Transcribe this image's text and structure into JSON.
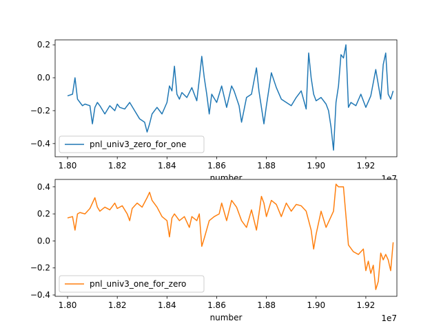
{
  "chart_data": [
    {
      "type": "line",
      "xlabel": "number",
      "ylabel": "",
      "x_offset_text": "1e7",
      "xlim": [
        1.795,
        1.9325
      ],
      "ylim": [
        -0.48,
        0.23
      ],
      "x_ticks": [
        1.8,
        1.82,
        1.84,
        1.86,
        1.88,
        1.9,
        1.92
      ],
      "x_tick_labels": [
        "1.80",
        "1.82",
        "1.84",
        "1.86",
        "1.88",
        "1.90",
        "1.92"
      ],
      "y_ticks": [
        0.2,
        0.0,
        -0.2,
        -0.4
      ],
      "y_tick_labels": [
        "0.2",
        "0.0",
        "−0.2",
        "−0.4"
      ],
      "grid": false,
      "legend_position": "lower-left",
      "series": [
        {
          "name": "pnl_univ3_zero_for_one",
          "color": "#1f77b4",
          "x": [
            1.8,
            1.802,
            1.803,
            1.804,
            1.805,
            1.806,
            1.807,
            1.809,
            1.81,
            1.811,
            1.812,
            1.813,
            1.815,
            1.817,
            1.819,
            1.82,
            1.821,
            1.823,
            1.825,
            1.827,
            1.829,
            1.831,
            1.832,
            1.833,
            1.834,
            1.836,
            1.838,
            1.84,
            1.841,
            1.842,
            1.843,
            1.844,
            1.845,
            1.846,
            1.848,
            1.85,
            1.852,
            1.853,
            1.854,
            1.855,
            1.856,
            1.857,
            1.858,
            1.86,
            1.862,
            1.864,
            1.866,
            1.867,
            1.869,
            1.87,
            1.872,
            1.874,
            1.876,
            1.877,
            1.879,
            1.88,
            1.882,
            1.884,
            1.886,
            1.888,
            1.89,
            1.892,
            1.894,
            1.896,
            1.897,
            1.898,
            1.899,
            1.9,
            1.902,
            1.904,
            1.905,
            1.906,
            1.907,
            1.908,
            1.909,
            1.91,
            1.911,
            1.912,
            1.913,
            1.914,
            1.916,
            1.918,
            1.92,
            1.922,
            1.924,
            1.926,
            1.927,
            1.928,
            1.929,
            1.93,
            1.931
          ],
          "values": [
            -0.11,
            -0.1,
            0.0,
            -0.13,
            -0.15,
            -0.17,
            -0.16,
            -0.17,
            -0.28,
            -0.18,
            -0.15,
            -0.17,
            -0.22,
            -0.17,
            -0.2,
            -0.16,
            -0.18,
            -0.19,
            -0.15,
            -0.2,
            -0.25,
            -0.27,
            -0.33,
            -0.28,
            -0.22,
            -0.18,
            -0.22,
            -0.15,
            -0.05,
            -0.08,
            0.07,
            -0.1,
            -0.13,
            -0.09,
            -0.12,
            -0.06,
            -0.14,
            -0.01,
            0.13,
            0.0,
            -0.1,
            -0.22,
            -0.1,
            -0.15,
            -0.05,
            -0.18,
            -0.05,
            -0.08,
            -0.17,
            -0.27,
            -0.12,
            -0.1,
            0.06,
            -0.08,
            -0.28,
            -0.17,
            0.03,
            -0.06,
            -0.13,
            -0.15,
            -0.17,
            -0.12,
            -0.08,
            -0.19,
            0.15,
            0.0,
            -0.1,
            -0.14,
            -0.12,
            -0.16,
            -0.2,
            -0.3,
            -0.44,
            -0.15,
            -0.05,
            0.14,
            0.12,
            0.2,
            -0.18,
            -0.15,
            -0.17,
            -0.1,
            -0.18,
            -0.11,
            0.05,
            -0.13,
            0.08,
            0.15,
            -0.1,
            -0.13,
            -0.08
          ]
        }
      ]
    },
    {
      "type": "line",
      "xlabel": "number",
      "ylabel": "",
      "x_offset_text": "1e7",
      "xlim": [
        1.795,
        1.9325
      ],
      "ylim": [
        -0.41,
        0.455
      ],
      "x_ticks": [
        1.8,
        1.82,
        1.84,
        1.86,
        1.88,
        1.9,
        1.92
      ],
      "x_tick_labels": [
        "1.80",
        "1.82",
        "1.84",
        "1.86",
        "1.88",
        "1.90",
        "1.92"
      ],
      "y_ticks": [
        0.4,
        0.2,
        0.0,
        -0.2,
        -0.4
      ],
      "y_tick_labels": [
        "0.4",
        "0.2",
        "0.0",
        "−0.2",
        "−0.4"
      ],
      "grid": false,
      "legend_position": "lower-left",
      "series": [
        {
          "name": "pnl_univ3_one_for_zero",
          "color": "#ff7f0e",
          "x": [
            1.8,
            1.802,
            1.803,
            1.804,
            1.805,
            1.807,
            1.809,
            1.811,
            1.812,
            1.813,
            1.815,
            1.817,
            1.819,
            1.82,
            1.822,
            1.824,
            1.825,
            1.826,
            1.828,
            1.83,
            1.832,
            1.833,
            1.834,
            1.836,
            1.838,
            1.84,
            1.841,
            1.842,
            1.843,
            1.845,
            1.847,
            1.849,
            1.85,
            1.852,
            1.853,
            1.854,
            1.855,
            1.857,
            1.859,
            1.861,
            1.862,
            1.864,
            1.866,
            1.868,
            1.87,
            1.872,
            1.874,
            1.876,
            1.877,
            1.878,
            1.879,
            1.88,
            1.882,
            1.884,
            1.886,
            1.888,
            1.89,
            1.892,
            1.894,
            1.896,
            1.898,
            1.899,
            1.9,
            1.902,
            1.904,
            1.906,
            1.907,
            1.908,
            1.909,
            1.91,
            1.911,
            1.913,
            1.915,
            1.917,
            1.919,
            1.92,
            1.921,
            1.922,
            1.923,
            1.924,
            1.925,
            1.926,
            1.927,
            1.928,
            1.929,
            1.93,
            1.931
          ],
          "values": [
            0.17,
            0.18,
            0.08,
            0.2,
            0.21,
            0.2,
            0.24,
            0.32,
            0.25,
            0.22,
            0.25,
            0.23,
            0.28,
            0.24,
            0.26,
            0.2,
            0.15,
            0.24,
            0.28,
            0.25,
            0.32,
            0.36,
            0.3,
            0.25,
            0.18,
            0.15,
            0.03,
            0.17,
            0.2,
            0.15,
            0.18,
            0.1,
            0.18,
            0.15,
            0.2,
            -0.04,
            0.02,
            0.15,
            0.18,
            0.2,
            0.28,
            0.15,
            0.3,
            0.25,
            0.15,
            0.1,
            0.23,
            0.08,
            0.2,
            0.33,
            0.28,
            0.18,
            0.3,
            0.27,
            0.18,
            0.28,
            0.22,
            0.27,
            0.26,
            0.22,
            0.08,
            -0.06,
            0.05,
            0.22,
            0.1,
            0.18,
            0.22,
            0.42,
            0.4,
            0.4,
            0.4,
            -0.03,
            -0.08,
            -0.1,
            -0.06,
            -0.22,
            -0.15,
            -0.24,
            -0.18,
            -0.36,
            -0.3,
            -0.09,
            -0.14,
            -0.1,
            -0.14,
            -0.22,
            -0.01
          ]
        }
      ]
    }
  ]
}
